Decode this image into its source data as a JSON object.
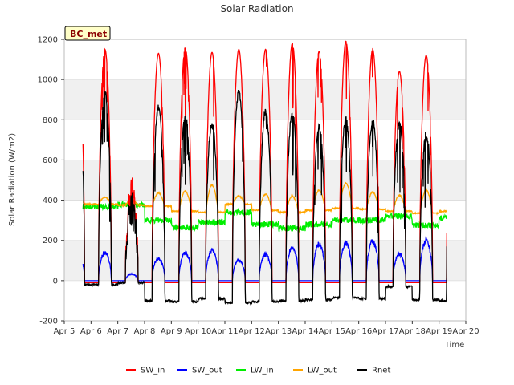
{
  "chart_data": {
    "type": "line",
    "title": "Solar Radiation",
    "xlabel": "Time",
    "ylabel": "Solar Radiation (W/m2)",
    "badge": "BC_met",
    "ylim": [
      -200,
      1200
    ],
    "xlim": [
      5,
      20
    ],
    "yticks": [
      -200,
      0,
      200,
      400,
      600,
      800,
      1000,
      1200
    ],
    "xticks": [
      5,
      6,
      7,
      8,
      9,
      10,
      11,
      12,
      13,
      14,
      15,
      16,
      17,
      18,
      19,
      20
    ],
    "xtick_labels": [
      "Apr 5",
      "Apr 6",
      "Apr 7",
      "Apr 8",
      "Apr 9",
      "Apr 10",
      "Apr 11",
      "Apr 12",
      "Apr 13",
      "Apr 14",
      "Apr 15",
      "Apr 16",
      "Apr 17",
      "Apr 18",
      "Apr 19",
      "Apr 20"
    ],
    "legend_position": "bottom-center",
    "day_start": 5.7,
    "day_end": 19.3,
    "days": [
      {
        "day": 6,
        "sw_peak": 1150,
        "sw_out_peak": 150,
        "lw_in": 370,
        "lw_out_night": 380,
        "lw_out_day": 415,
        "rnet_night": -20
      },
      {
        "day": 7,
        "sw_peak": 530,
        "sw_out_peak": 35,
        "lw_in": 380,
        "lw_out_night": 375,
        "lw_out_day": 400,
        "rnet_night": -10
      },
      {
        "day": 8,
        "sw_peak": 1130,
        "sw_out_peak": 120,
        "lw_in": 300,
        "lw_out_night": 370,
        "lw_out_day": 435,
        "rnet_night": -100
      },
      {
        "day": 9,
        "sw_peak": 1160,
        "sw_out_peak": 150,
        "lw_in": 265,
        "lw_out_night": 345,
        "lw_out_day": 445,
        "rnet_night": -105
      },
      {
        "day": 10,
        "sw_peak": 1135,
        "sw_out_peak": 160,
        "lw_in": 290,
        "lw_out_night": 340,
        "lw_out_day": 475,
        "rnet_night": -90
      },
      {
        "day": 11,
        "sw_peak": 1150,
        "sw_out_peak": 110,
        "lw_in": 340,
        "lw_out_night": 380,
        "lw_out_day": 420,
        "rnet_night": -110
      },
      {
        "day": 12,
        "sw_peak": 1150,
        "sw_out_peak": 140,
        "lw_in": 280,
        "lw_out_night": 350,
        "lw_out_day": 430,
        "rnet_night": -105
      },
      {
        "day": 13,
        "sw_peak": 1180,
        "sw_out_peak": 175,
        "lw_in": 260,
        "lw_out_night": 340,
        "lw_out_day": 420,
        "rnet_night": -100
      },
      {
        "day": 14,
        "sw_peak": 1140,
        "sw_out_peak": 195,
        "lw_in": 280,
        "lw_out_night": 350,
        "lw_out_day": 450,
        "rnet_night": -95
      },
      {
        "day": 15,
        "sw_peak": 1190,
        "sw_out_peak": 200,
        "lw_in": 300,
        "lw_out_night": 360,
        "lw_out_day": 485,
        "rnet_night": -85
      },
      {
        "day": 16,
        "sw_peak": 1150,
        "sw_out_peak": 210,
        "lw_in": 300,
        "lw_out_night": 355,
        "lw_out_day": 440,
        "rnet_night": -90
      },
      {
        "day": 17,
        "sw_peak": 1040,
        "sw_out_peak": 140,
        "lw_in": 320,
        "lw_out_night": 345,
        "lw_out_day": 425,
        "rnet_night": -30
      },
      {
        "day": 18,
        "sw_peak": 1120,
        "sw_out_peak": 215,
        "lw_in": 275,
        "lw_out_night": 335,
        "lw_out_day": 450,
        "rnet_night": -95
      },
      {
        "day": 19,
        "sw_peak": 1070,
        "sw_out_peak": 140,
        "lw_in": 310,
        "lw_out_night": 345,
        "lw_out_day": 420,
        "rnet_night": -100
      }
    ],
    "series": [
      {
        "name": "SW_in",
        "color": "#ff0000"
      },
      {
        "name": "SW_out",
        "color": "#0000ff"
      },
      {
        "name": "LW_in",
        "color": "#00ee00"
      },
      {
        "name": "LW_out",
        "color": "#ffa500"
      },
      {
        "name": "Rnet",
        "color": "#000000"
      }
    ]
  }
}
